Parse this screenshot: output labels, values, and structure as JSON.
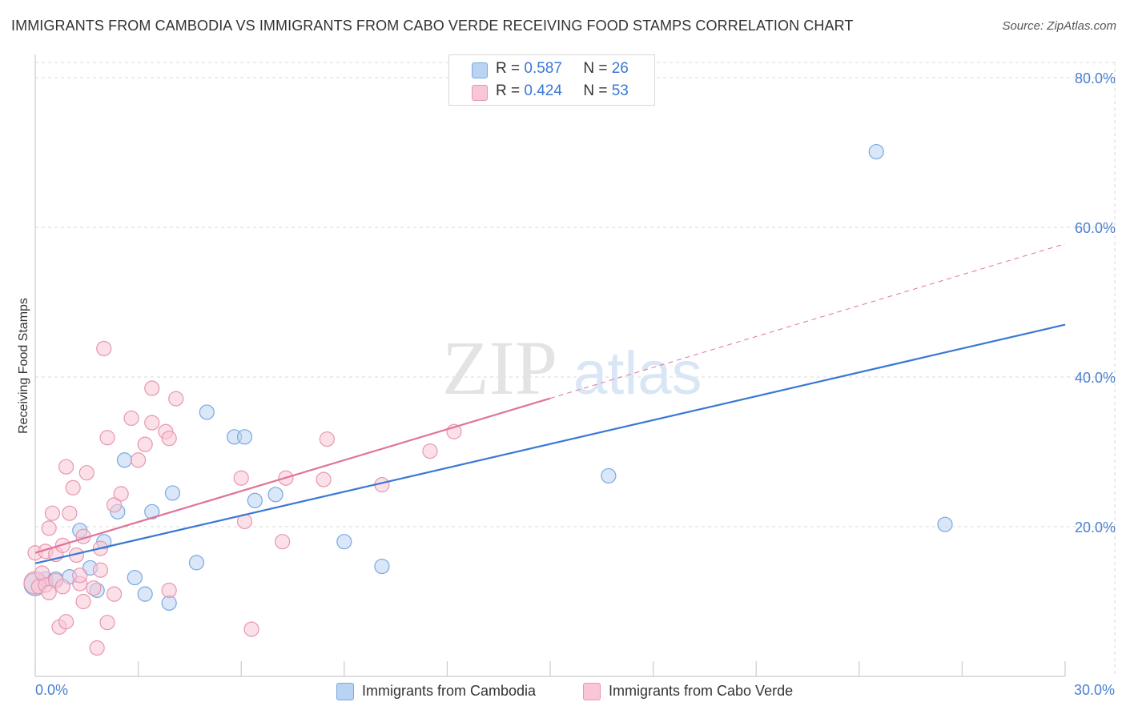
{
  "header": {
    "title": "IMMIGRANTS FROM CAMBODIA VS IMMIGRANTS FROM CABO VERDE RECEIVING FOOD STAMPS CORRELATION CHART",
    "source": "Source: ZipAtlas.com"
  },
  "watermark": {
    "zip": "ZIP",
    "atlas": "atlas"
  },
  "legend": {
    "rows": [
      {
        "r_label": "R =",
        "r_value": "0.587",
        "n_label": "N =",
        "n_value": "26"
      },
      {
        "r_label": "R =",
        "r_value": "0.424",
        "n_label": "N =",
        "n_value": "53"
      }
    ]
  },
  "bottom_legend": {
    "series1": "Immigrants from Cambodia",
    "series2": "Immigrants from Cabo Verde"
  },
  "colors": {
    "blue_fill": "#b9d3f3",
    "blue_stroke": "#7aa8e0",
    "blue_line": "#3a78d4",
    "pink_fill": "#f8c6d5",
    "pink_stroke": "#e896b0",
    "pink_line": "#e0729a",
    "grid": "#d9d9d9",
    "axis_text": "#4a7fd0"
  },
  "chart_data": {
    "type": "scatter",
    "title": "IMMIGRANTS FROM CAMBODIA VS IMMIGRANTS FROM CABO VERDE RECEIVING FOOD STAMPS CORRELATION CHART",
    "xlabel": "",
    "ylabel": "Receiving Food Stamps",
    "xlim": [
      0,
      30
    ],
    "ylim": [
      0,
      80
    ],
    "x_tick_labels": [
      "0.0%",
      "30.0%"
    ],
    "y_ticks": [
      20,
      40,
      60,
      80
    ],
    "y_tick_labels": [
      "20.0%",
      "40.0%",
      "60.0%",
      "80.0%"
    ],
    "grid": true,
    "legend_position": "top-center",
    "series": [
      {
        "name": "Immigrants from Cambodia",
        "r": 0.587,
        "n": 26,
        "trend": {
          "x0": 0,
          "y0": 15.1,
          "x1": 30,
          "y1": 47.0,
          "dashed_from": null
        },
        "points": [
          [
            0.0,
            12.3,
            3
          ],
          [
            0.3,
            13.0,
            1
          ],
          [
            0.6,
            13.0,
            1
          ],
          [
            1.0,
            13.3,
            1
          ],
          [
            1.3,
            19.5,
            1
          ],
          [
            1.6,
            14.5,
            1
          ],
          [
            1.8,
            11.5,
            1
          ],
          [
            2.0,
            18.0,
            1
          ],
          [
            2.4,
            22.0,
            1
          ],
          [
            2.6,
            28.9,
            1
          ],
          [
            2.9,
            13.2,
            1
          ],
          [
            3.2,
            11.0,
            1
          ],
          [
            3.4,
            22.0,
            1
          ],
          [
            3.9,
            9.8,
            1
          ],
          [
            4.0,
            24.5,
            1
          ],
          [
            4.7,
            15.2,
            1
          ],
          [
            5.0,
            35.3,
            1
          ],
          [
            5.8,
            32.0,
            1
          ],
          [
            6.1,
            32.0,
            1
          ],
          [
            6.4,
            23.5,
            1
          ],
          [
            7.0,
            24.3,
            1
          ],
          [
            9.0,
            18.0,
            1
          ],
          [
            10.1,
            14.7,
            1
          ],
          [
            16.7,
            26.8,
            1
          ],
          [
            24.5,
            70.1,
            1
          ],
          [
            26.5,
            20.3,
            1
          ]
        ]
      },
      {
        "name": "Immigrants from Cabo Verde",
        "r": 0.424,
        "n": 53,
        "trend": {
          "x0": 0,
          "y0": 16.5,
          "x1": 30,
          "y1": 57.8,
          "dashed_from": 15.0
        },
        "points": [
          [
            0.0,
            12.5,
            2
          ],
          [
            0.0,
            16.5,
            1
          ],
          [
            0.1,
            12.0,
            1
          ],
          [
            0.2,
            13.8,
            1
          ],
          [
            0.3,
            12.2,
            1
          ],
          [
            0.3,
            16.7,
            1
          ],
          [
            0.4,
            11.2,
            1
          ],
          [
            0.4,
            19.8,
            1
          ],
          [
            0.5,
            21.8,
            1
          ],
          [
            0.6,
            16.3,
            1
          ],
          [
            0.6,
            12.8,
            1
          ],
          [
            0.7,
            6.6,
            1
          ],
          [
            0.8,
            17.5,
            1
          ],
          [
            0.8,
            12.0,
            1
          ],
          [
            0.9,
            28.0,
            1
          ],
          [
            0.9,
            7.3,
            1
          ],
          [
            1.0,
            21.8,
            1
          ],
          [
            1.1,
            25.2,
            1
          ],
          [
            1.2,
            16.2,
            1
          ],
          [
            1.3,
            12.4,
            1
          ],
          [
            1.3,
            13.5,
            1
          ],
          [
            1.4,
            18.7,
            1
          ],
          [
            1.4,
            10.0,
            1
          ],
          [
            1.5,
            27.2,
            1
          ],
          [
            1.7,
            11.8,
            1
          ],
          [
            1.8,
            3.8,
            1
          ],
          [
            1.9,
            14.2,
            1
          ],
          [
            1.9,
            17.1,
            1
          ],
          [
            2.0,
            43.8,
            1
          ],
          [
            2.1,
            31.9,
            1
          ],
          [
            2.1,
            7.2,
            1
          ],
          [
            2.3,
            11.0,
            1
          ],
          [
            2.3,
            22.9,
            1
          ],
          [
            2.5,
            24.4,
            1
          ],
          [
            2.8,
            34.5,
            1
          ],
          [
            3.0,
            28.9,
            1
          ],
          [
            3.2,
            31.0,
            1
          ],
          [
            3.4,
            38.5,
            1
          ],
          [
            3.4,
            33.9,
            1
          ],
          [
            3.8,
            32.7,
            1
          ],
          [
            3.9,
            11.5,
            1
          ],
          [
            3.9,
            31.8,
            1
          ],
          [
            4.1,
            37.1,
            1
          ],
          [
            6.0,
            26.5,
            1
          ],
          [
            6.1,
            20.7,
            1
          ],
          [
            6.3,
            6.3,
            1
          ],
          [
            7.3,
            26.5,
            1
          ],
          [
            7.2,
            18.0,
            1
          ],
          [
            8.4,
            26.3,
            1
          ],
          [
            8.5,
            31.7,
            1
          ],
          [
            10.1,
            25.6,
            1
          ],
          [
            11.5,
            30.1,
            1
          ],
          [
            12.2,
            32.7,
            1
          ]
        ]
      }
    ]
  }
}
